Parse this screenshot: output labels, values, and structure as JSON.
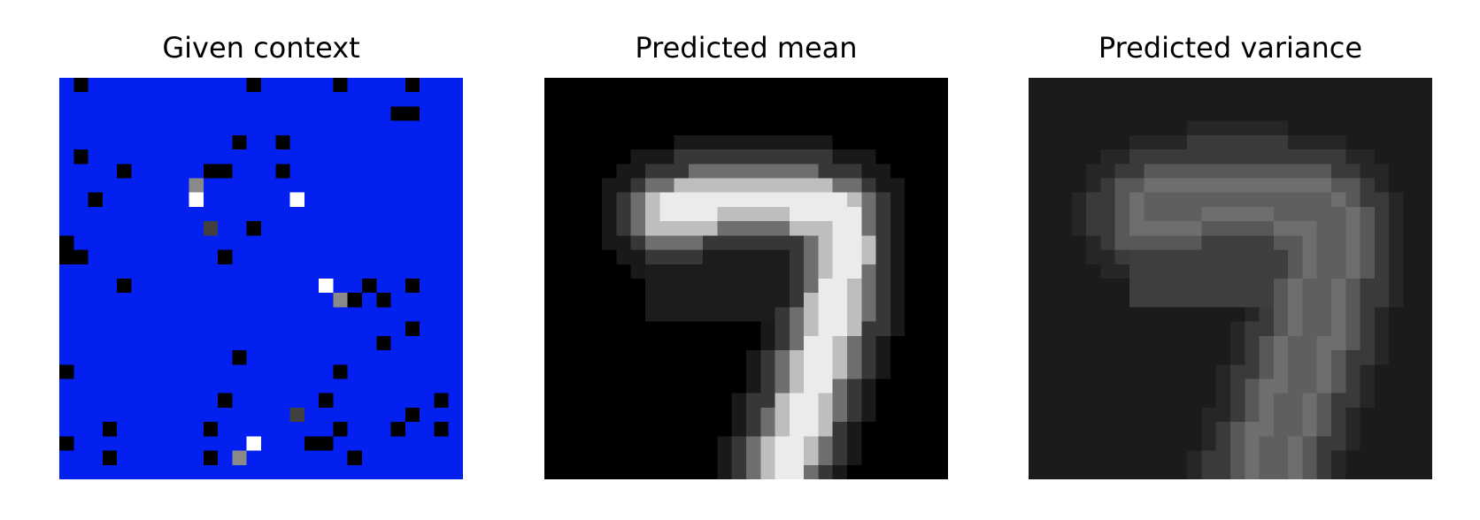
{
  "figure": {
    "panels": [
      {
        "id": "context",
        "title": "Given context"
      },
      {
        "id": "mean",
        "title": "Predicted mean"
      },
      {
        "id": "variance",
        "title": "Predicted variance"
      }
    ]
  },
  "colors": {
    "context_background": "#0320f0",
    "mean_background": "#000000",
    "variance_background": "#1b1b1b"
  }
}
